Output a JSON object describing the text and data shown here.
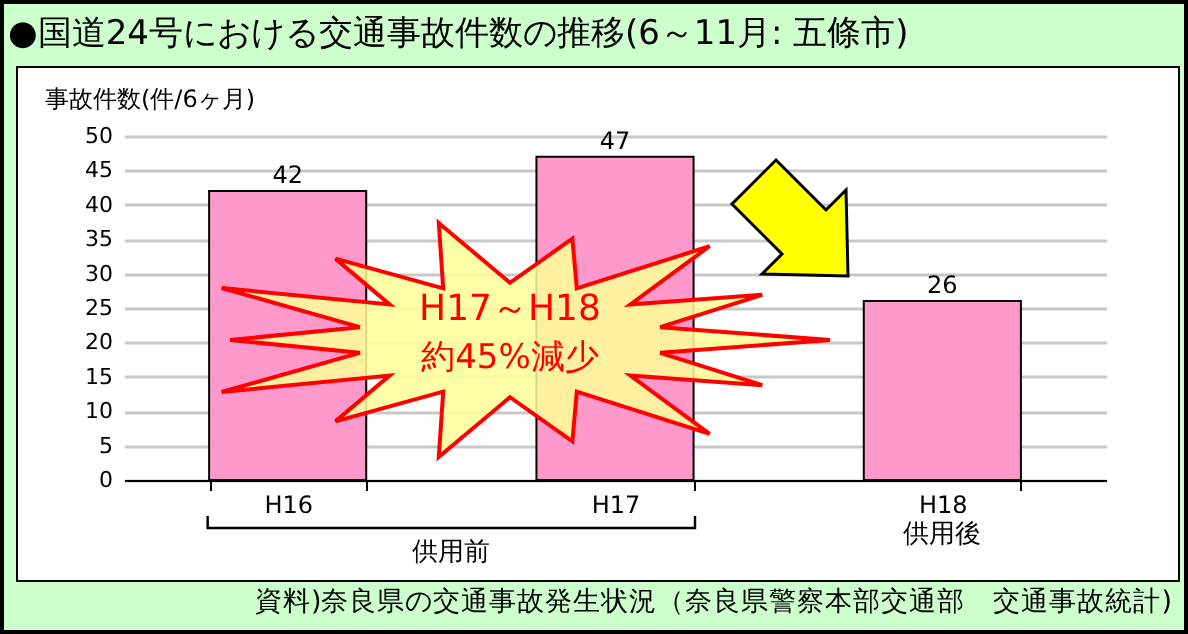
{
  "chart_data": {
    "type": "bar",
    "title": "●国道24号における交通事故件数の推移(6～11月: 五條市)",
    "ylabel": "事故件数(件/6ヶ月)",
    "categories": [
      "H16",
      "H17",
      "H18"
    ],
    "values": [
      42,
      47,
      26
    ],
    "colors": [
      "#ff99cc",
      "#ff99cc",
      "#ff99cc"
    ],
    "ylim": [
      0,
      50
    ],
    "yticks": [
      0,
      5,
      10,
      15,
      20,
      25,
      30,
      35,
      40,
      45,
      50
    ],
    "grid": "y",
    "data_labels": true,
    "annotations": [
      "資料)奈良県の交通事故発生状況（奈良県警察本部交通部　交通事故統計)",
      {
        "text": "H17～H18\n約45%減少"
      },
      "供用前",
      "供用後"
    ]
  }
}
